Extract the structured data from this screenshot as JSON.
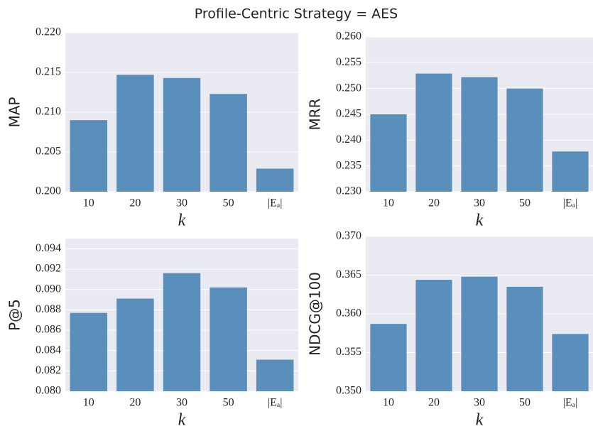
{
  "title": "Profile-Centric Strategy = AES",
  "chart_data": [
    {
      "type": "bar",
      "ylabel": "MAP",
      "xlabel": "k",
      "categories": [
        "10",
        "20",
        "30",
        "50",
        "|Eₐ|"
      ],
      "values": [
        0.209,
        0.2147,
        0.2143,
        0.2123,
        0.2029
      ],
      "color": "#5a8fbb",
      "ylim": [
        0.2,
        0.22
      ],
      "yticks": [
        {
          "value": 0.2,
          "label": "0.200"
        },
        {
          "value": 0.205,
          "label": "0.205"
        },
        {
          "value": 0.21,
          "label": "0.210"
        },
        {
          "value": 0.215,
          "label": "0.215"
        },
        {
          "value": 0.22,
          "label": "0.220"
        }
      ],
      "grid": true
    },
    {
      "type": "bar",
      "ylabel": "MRR",
      "xlabel": "k",
      "categories": [
        "10",
        "20",
        "30",
        "50",
        "|Eₐ|"
      ],
      "values": [
        0.245,
        0.2529,
        0.2522,
        0.25,
        0.2378
      ],
      "color": "#5a8fbb",
      "ylim": [
        0.23,
        0.26
      ],
      "yticks": [
        {
          "value": 0.23,
          "label": "0.230"
        },
        {
          "value": 0.235,
          "label": "0.235"
        },
        {
          "value": 0.24,
          "label": "0.240"
        },
        {
          "value": 0.245,
          "label": "0.245"
        },
        {
          "value": 0.25,
          "label": "0.250"
        },
        {
          "value": 0.255,
          "label": "0.255"
        },
        {
          "value": 0.26,
          "label": "0.260"
        }
      ],
      "grid": true
    },
    {
      "type": "bar",
      "ylabel": "P@5",
      "xlabel": "k",
      "categories": [
        "10",
        "20",
        "30",
        "50",
        "|Eₐ|"
      ],
      "values": [
        0.0877,
        0.0891,
        0.0916,
        0.0902,
        0.0831
      ],
      "color": "#5a8fbb",
      "ylim": [
        0.08,
        0.095
      ],
      "yticks": [
        {
          "value": 0.08,
          "label": "0.080"
        },
        {
          "value": 0.082,
          "label": "0.082"
        },
        {
          "value": 0.084,
          "label": "0.084"
        },
        {
          "value": 0.086,
          "label": "0.086"
        },
        {
          "value": 0.088,
          "label": "0.088"
        },
        {
          "value": 0.09,
          "label": "0.090"
        },
        {
          "value": 0.092,
          "label": "0.092"
        },
        {
          "value": 0.094,
          "label": "0.094"
        }
      ],
      "grid": true
    },
    {
      "type": "bar",
      "ylabel": "NDCG@100",
      "xlabel": "k",
      "categories": [
        "10",
        "20",
        "30",
        "50",
        "|Eₐ|"
      ],
      "values": [
        0.3587,
        0.3644,
        0.3648,
        0.3635,
        0.3574
      ],
      "color": "#5a8fbb",
      "ylim": [
        0.35,
        0.37
      ],
      "yticks": [
        {
          "value": 0.35,
          "label": "0.350"
        },
        {
          "value": 0.355,
          "label": "0.355"
        },
        {
          "value": 0.36,
          "label": "0.360"
        },
        {
          "value": 0.365,
          "label": "0.365"
        },
        {
          "value": 0.37,
          "label": "0.370"
        }
      ],
      "grid": true
    }
  ]
}
